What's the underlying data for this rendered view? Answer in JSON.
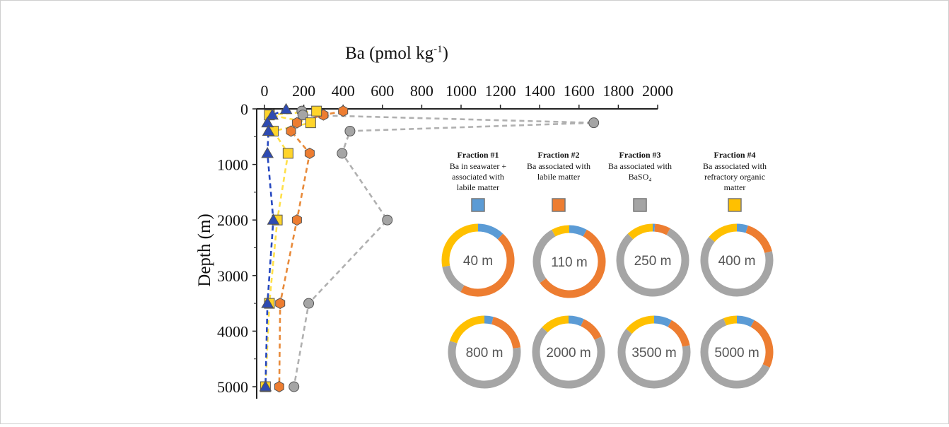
{
  "chart_data": [
    {
      "type": "scatter",
      "title": "",
      "xlabel": "Ba (pmol kg",
      "xlabel_sup": "-1",
      "xlabel_end": ")",
      "ylabel": "Depth (m)",
      "xlim": [
        0,
        2000
      ],
      "ylim": [
        0,
        5000
      ],
      "y_inverted": true,
      "x_axis_position": "top",
      "x_ticks": [
        "0",
        "200",
        "400",
        "600",
        "800",
        "1000",
        "1200",
        "1400",
        "1600",
        "1800",
        "2000"
      ],
      "y_ticks": [
        "0",
        "1000",
        "2000",
        "3000",
        "4000",
        "5000"
      ],
      "grid": false,
      "series": [
        {
          "marker": "triangle",
          "color": "#2e4bb3",
          "line_color": "#2648c0",
          "points": [
            {
              "x": 110,
              "y": 10
            },
            {
              "x": 40,
              "y": 110
            },
            {
              "x": 15,
              "y": 250
            },
            {
              "x": 20,
              "y": 400
            },
            {
              "x": 15,
              "y": 800
            },
            {
              "x": 45,
              "y": 2000
            },
            {
              "x": 15,
              "y": 3500
            },
            {
              "x": 5,
              "y": 5000
            }
          ]
        },
        {
          "marker": "hexagon",
          "color": "#ed7d31",
          "line_color": "#e88a3a",
          "points": [
            {
              "x": 400,
              "y": 40
            },
            {
              "x": 300,
              "y": 110
            },
            {
              "x": 165,
              "y": 250
            },
            {
              "x": 135,
              "y": 400
            },
            {
              "x": 230,
              "y": 800
            },
            {
              "x": 165,
              "y": 2000
            },
            {
              "x": 80,
              "y": 3500
            },
            {
              "x": 75,
              "y": 5000
            }
          ]
        },
        {
          "marker": "circle",
          "color": "#a5a5a5",
          "line_color": "#b0b0b0",
          "points": [
            {
              "x": 190,
              "y": 40
            },
            {
              "x": 195,
              "y": 110
            },
            {
              "x": 1675,
              "y": 250
            },
            {
              "x": 435,
              "y": 400
            },
            {
              "x": 395,
              "y": 800
            },
            {
              "x": 625,
              "y": 2000
            },
            {
              "x": 225,
              "y": 3500
            },
            {
              "x": 150,
              "y": 5000
            }
          ]
        },
        {
          "marker": "square",
          "color": "#ffd42a",
          "line_color": "#ffe04a",
          "points": [
            {
              "x": 265,
              "y": 40
            },
            {
              "x": 25,
              "y": 110
            },
            {
              "x": 235,
              "y": 250
            },
            {
              "x": 45,
              "y": 400
            },
            {
              "x": 120,
              "y": 800
            },
            {
              "x": 65,
              "y": 2000
            },
            {
              "x": 25,
              "y": 3500
            },
            {
              "x": 5,
              "y": 5000
            }
          ]
        }
      ]
    },
    {
      "type": "pie",
      "legend": [
        {
          "title": "Fraction #1",
          "lines": [
            "Ba in seawater +",
            "associated with",
            "labile matter"
          ],
          "color": "#5b9bd5"
        },
        {
          "title": "Fraction #2",
          "lines": [
            "Ba associated with",
            "labile  matter"
          ],
          "color": "#ed7d31"
        },
        {
          "title": "Fraction #3",
          "lines": [
            "Ba associated with",
            "BaSO₄"
          ],
          "color": "#a5a5a5"
        },
        {
          "title": "Fraction #4",
          "lines": [
            "Ba associated with",
            "refractory organic",
            "matter"
          ],
          "color": "#ffc000"
        }
      ],
      "donuts": [
        {
          "label": "40 m",
          "values": [
            12,
            46,
            14,
            28
          ]
        },
        {
          "label": "110 m",
          "values": [
            8,
            57,
            27,
            8
          ]
        },
        {
          "label": "250 m",
          "values": [
            1,
            7,
            80,
            12
          ]
        },
        {
          "label": "400 m",
          "values": [
            5,
            16,
            65,
            14
          ]
        },
        {
          "label": "800 m",
          "values": [
            4,
            19,
            57,
            20
          ]
        },
        {
          "label": "2000 m",
          "values": [
            7,
            11,
            69,
            13
          ]
        },
        {
          "label": "3500 m",
          "values": [
            8,
            14,
            64,
            14
          ]
        },
        {
          "label": "5000 m",
          "values": [
            8,
            24,
            62,
            6
          ]
        }
      ]
    }
  ]
}
